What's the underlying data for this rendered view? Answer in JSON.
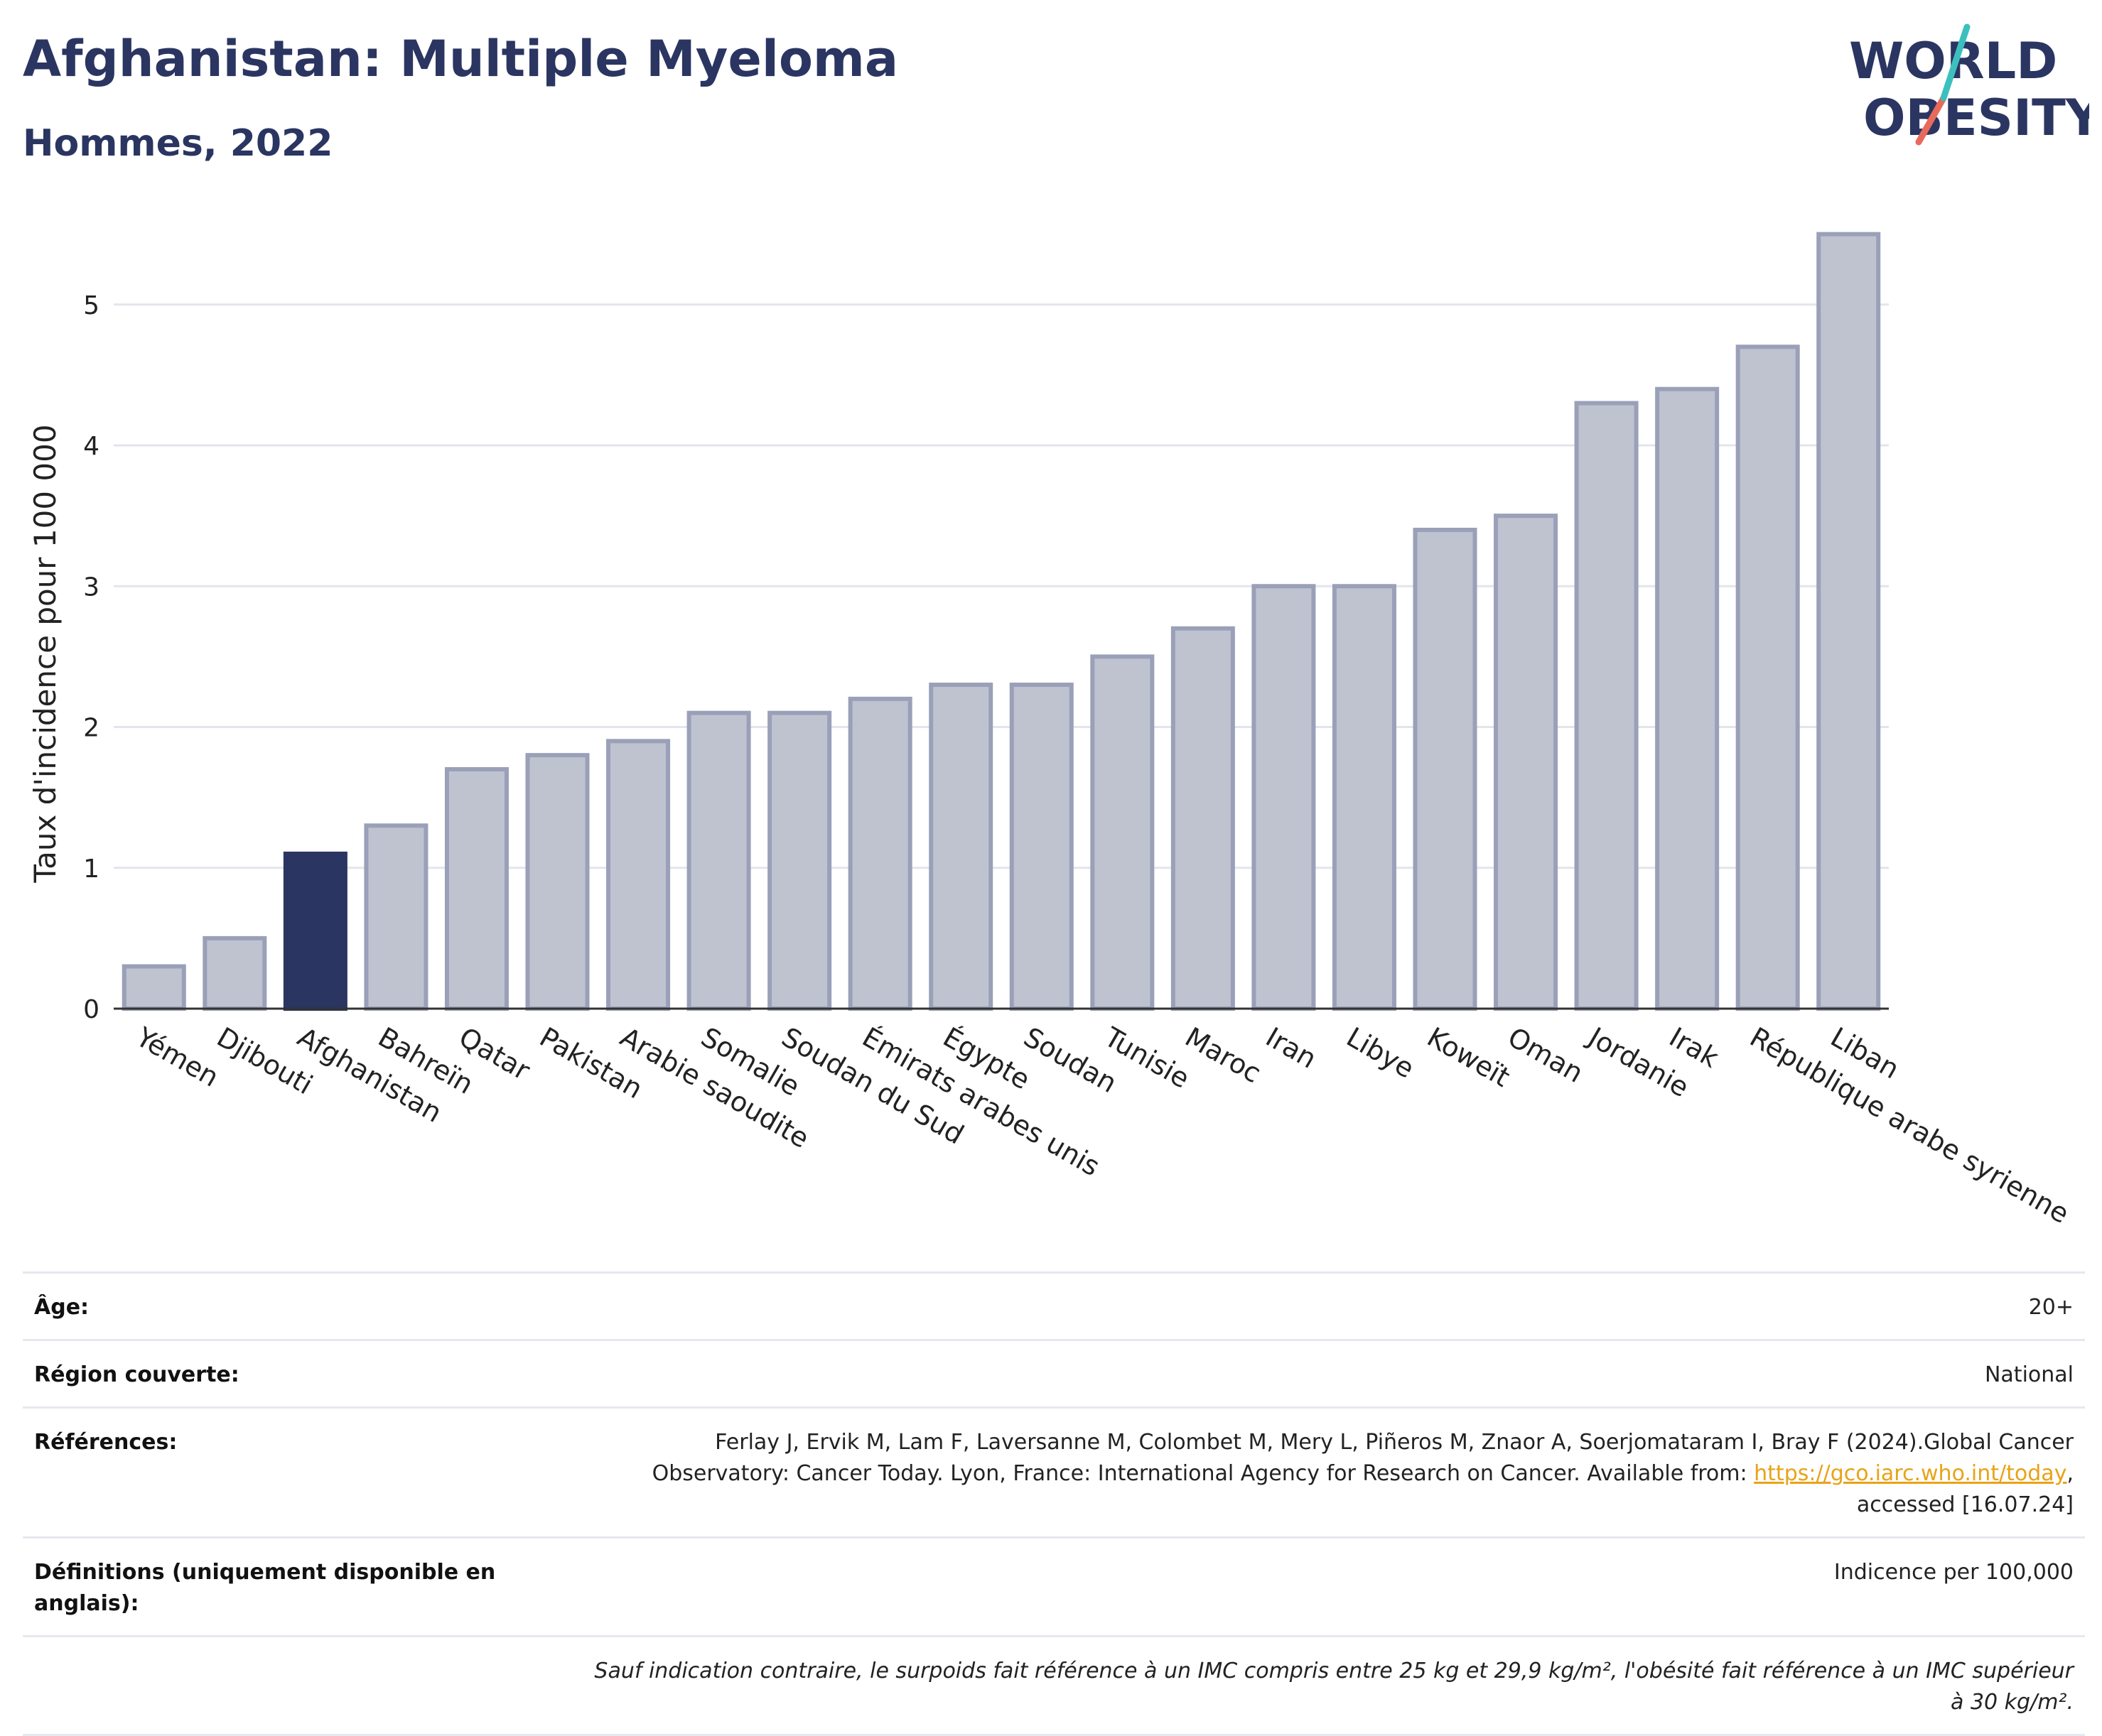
{
  "header": {
    "title": "Afghanistan: Multiple Myeloma",
    "subtitle": "Hommes, 2022",
    "logo_line1": "WORLD",
    "logo_line2": "OBESITY"
  },
  "colors": {
    "title": "#2b3561",
    "bar": "#bfc3d0",
    "bar_stroke": "#9aa0b8",
    "highlight": "#2b3561",
    "link": "#e8a317",
    "logo_teal": "#3cbfbf",
    "logo_coral": "#e86a5a"
  },
  "chart_data": {
    "type": "bar",
    "ylabel": "Taux d'incidence pour 100 000",
    "ylim": [
      0,
      5.7
    ],
    "yticks": [
      0,
      1,
      2,
      3,
      4,
      5
    ],
    "grid": true,
    "highlight_category": "Afghanistan",
    "categories": [
      "Yémen",
      "Djibouti",
      "Afghanistan",
      "Bahreïn",
      "Qatar",
      "Pakistan",
      "Arabie saoudite",
      "Somalie",
      "Soudan du Sud",
      "Émirats arabes unis",
      "Égypte",
      "Soudan",
      "Tunisie",
      "Maroc",
      "Iran",
      "Libye",
      "Koweït",
      "Oman",
      "Jordanie",
      "Irak",
      "République arabe syrienne",
      "Liban"
    ],
    "values": [
      0.3,
      0.5,
      1.1,
      1.3,
      1.7,
      1.8,
      1.9,
      2.1,
      2.1,
      2.2,
      2.3,
      2.3,
      2.5,
      2.7,
      3.0,
      3.0,
      3.4,
      3.5,
      4.3,
      4.4,
      4.7,
      5.5
    ]
  },
  "info": {
    "age_label": "Âge:",
    "age_value": "20+",
    "region_label": "Région couverte:",
    "region_value": "National",
    "refs_label": "Références:",
    "refs_text_1": "Ferlay J, Ervik M, Lam F, Laversanne M, Colombet M, Mery L, Piñeros M, Znaor A, Soerjomataram I, Bray F (2024).Global Cancer Observatory: Cancer Today. Lyon, France: International Agency for Research on Cancer. Available from: ",
    "refs_link": "https://gco.iarc.who.int/today",
    "refs_text_2": ", accessed [16.07.24]",
    "defs_label": "Définitions (uniquement disponible en anglais):",
    "defs_value": "Indicence per 100,000",
    "note": "Sauf indication contraire, le surpoids fait référence à un IMC compris entre 25 kg et 29,9 kg/m², l'obésité fait référence à un IMC supérieur à 30 kg/m²."
  }
}
